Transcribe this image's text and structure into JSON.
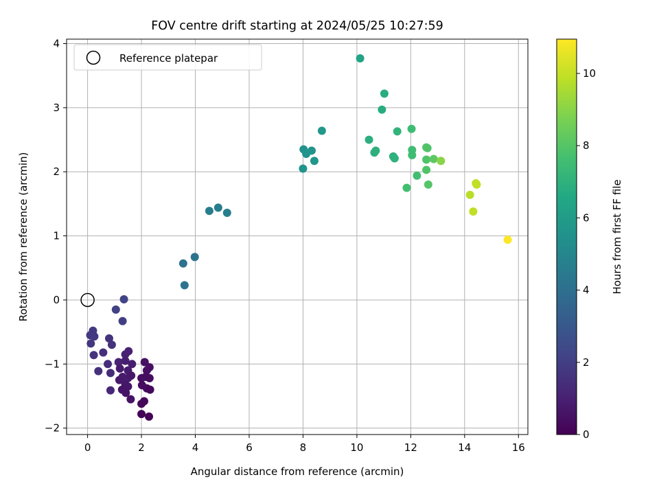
{
  "chart_data": {
    "type": "scatter",
    "title": "FOV centre drift starting at 2024/05/25 10:27:59",
    "xlabel": "Angular distance from reference (arcmin)",
    "ylabel": "Rotation from reference (arcmin)",
    "colorbar_label": "Hours from first FF file",
    "xlim": [
      -0.78,
      16.35
    ],
    "ylim": [
      -2.1,
      4.07
    ],
    "x_ticks": [
      0,
      2,
      4,
      6,
      8,
      10,
      12,
      14,
      16
    ],
    "y_ticks": [
      -2,
      -1,
      0,
      1,
      2,
      3,
      4
    ],
    "colorbar_range": [
      0,
      10.95
    ],
    "colorbar_ticks": [
      0,
      2,
      4,
      6,
      8,
      10
    ],
    "colormap": "viridis",
    "grid": true,
    "legend": {
      "placement": "top-left",
      "entries": [
        "Reference platepar"
      ]
    },
    "reference_point": {
      "x": 0,
      "y": 0
    },
    "points": [
      {
        "x": 1.35,
        "y": 0.01,
        "h": 2.2
      },
      {
        "x": 1.05,
        "y": -0.15,
        "h": 2.1
      },
      {
        "x": 1.3,
        "y": -0.33,
        "h": 2.0
      },
      {
        "x": 0.2,
        "y": -0.48,
        "h": 1.8
      },
      {
        "x": 0.25,
        "y": -0.57,
        "h": 1.8
      },
      {
        "x": 0.1,
        "y": -0.55,
        "h": 1.8
      },
      {
        "x": 0.12,
        "y": -0.68,
        "h": 1.7
      },
      {
        "x": 0.8,
        "y": -0.6,
        "h": 1.6
      },
      {
        "x": 0.9,
        "y": -0.7,
        "h": 1.6
      },
      {
        "x": 0.23,
        "y": -0.86,
        "h": 1.6
      },
      {
        "x": 0.58,
        "y": -0.82,
        "h": 1.5
      },
      {
        "x": 0.4,
        "y": -1.11,
        "h": 1.5
      },
      {
        "x": 0.75,
        "y": -1.0,
        "h": 1.4
      },
      {
        "x": 0.85,
        "y": -1.14,
        "h": 1.4
      },
      {
        "x": 0.85,
        "y": -1.41,
        "h": 1.2
      },
      {
        "x": 1.15,
        "y": -0.97,
        "h": 1.1
      },
      {
        "x": 1.4,
        "y": -0.85,
        "h": 1.0
      },
      {
        "x": 1.52,
        "y": -0.8,
        "h": 1.0
      },
      {
        "x": 1.4,
        "y": -0.95,
        "h": 0.95
      },
      {
        "x": 1.65,
        "y": -1.0,
        "h": 0.9
      },
      {
        "x": 1.2,
        "y": -1.07,
        "h": 0.85
      },
      {
        "x": 1.5,
        "y": -1.1,
        "h": 0.85
      },
      {
        "x": 1.3,
        "y": -1.2,
        "h": 0.8
      },
      {
        "x": 1.5,
        "y": -1.22,
        "h": 0.8
      },
      {
        "x": 1.18,
        "y": -1.25,
        "h": 0.75
      },
      {
        "x": 1.4,
        "y": -1.32,
        "h": 0.7
      },
      {
        "x": 1.62,
        "y": -1.18,
        "h": 0.7
      },
      {
        "x": 1.5,
        "y": -1.35,
        "h": 0.65
      },
      {
        "x": 1.28,
        "y": -1.4,
        "h": 0.6
      },
      {
        "x": 1.42,
        "y": -1.45,
        "h": 0.6
      },
      {
        "x": 1.6,
        "y": -1.55,
        "h": 0.55
      },
      {
        "x": 2.12,
        "y": -0.97,
        "h": 0.5
      },
      {
        "x": 2.2,
        "y": -1.1,
        "h": 0.45
      },
      {
        "x": 2.3,
        "y": -1.05,
        "h": 0.45
      },
      {
        "x": 2.0,
        "y": -1.22,
        "h": 0.4
      },
      {
        "x": 2.15,
        "y": -1.2,
        "h": 0.4
      },
      {
        "x": 2.3,
        "y": -1.22,
        "h": 0.35
      },
      {
        "x": 2.02,
        "y": -1.33,
        "h": 0.35
      },
      {
        "x": 2.2,
        "y": -1.38,
        "h": 0.3
      },
      {
        "x": 2.32,
        "y": -1.4,
        "h": 0.25
      },
      {
        "x": 2.1,
        "y": -1.58,
        "h": 0.2
      },
      {
        "x": 2.0,
        "y": -1.62,
        "h": 0.2
      },
      {
        "x": 2.0,
        "y": -1.78,
        "h": 0.1
      },
      {
        "x": 2.28,
        "y": -1.82,
        "h": 0.05
      },
      {
        "x": 3.55,
        "y": 0.57,
        "h": 4.1
      },
      {
        "x": 3.6,
        "y": 0.23,
        "h": 4.2
      },
      {
        "x": 3.98,
        "y": 0.67,
        "h": 4.2
      },
      {
        "x": 4.52,
        "y": 1.39,
        "h": 4.6
      },
      {
        "x": 4.85,
        "y": 1.44,
        "h": 4.6
      },
      {
        "x": 5.18,
        "y": 1.36,
        "h": 4.7
      },
      {
        "x": 8.02,
        "y": 2.35,
        "h": 5.5
      },
      {
        "x": 8.12,
        "y": 2.28,
        "h": 5.6
      },
      {
        "x": 8.32,
        "y": 2.33,
        "h": 5.6
      },
      {
        "x": 8.42,
        "y": 2.17,
        "h": 5.7
      },
      {
        "x": 8.0,
        "y": 2.05,
        "h": 5.6
      },
      {
        "x": 8.7,
        "y": 2.64,
        "h": 5.8
      },
      {
        "x": 10.12,
        "y": 3.77,
        "h": 6.4
      },
      {
        "x": 11.02,
        "y": 3.22,
        "h": 6.8
      },
      {
        "x": 10.93,
        "y": 2.97,
        "h": 6.8
      },
      {
        "x": 10.45,
        "y": 2.5,
        "h": 6.9
      },
      {
        "x": 10.65,
        "y": 2.3,
        "h": 6.9
      },
      {
        "x": 10.7,
        "y": 2.33,
        "h": 6.95
      },
      {
        "x": 11.35,
        "y": 2.24,
        "h": 7.0
      },
      {
        "x": 11.4,
        "y": 2.21,
        "h": 7.0
      },
      {
        "x": 11.5,
        "y": 2.63,
        "h": 7.1
      },
      {
        "x": 12.03,
        "y": 2.67,
        "h": 7.5
      },
      {
        "x": 12.05,
        "y": 2.34,
        "h": 7.5
      },
      {
        "x": 12.05,
        "y": 2.26,
        "h": 7.5
      },
      {
        "x": 12.23,
        "y": 1.94,
        "h": 7.6
      },
      {
        "x": 11.85,
        "y": 1.75,
        "h": 7.6
      },
      {
        "x": 12.58,
        "y": 2.38,
        "h": 7.9
      },
      {
        "x": 12.62,
        "y": 2.37,
        "h": 7.9
      },
      {
        "x": 12.58,
        "y": 2.19,
        "h": 7.9
      },
      {
        "x": 12.58,
        "y": 2.03,
        "h": 7.9
      },
      {
        "x": 12.85,
        "y": 2.2,
        "h": 8.2
      },
      {
        "x": 12.65,
        "y": 1.8,
        "h": 8.0
      },
      {
        "x": 13.12,
        "y": 2.17,
        "h": 9.0
      },
      {
        "x": 14.2,
        "y": 1.64,
        "h": 9.8
      },
      {
        "x": 14.42,
        "y": 1.82,
        "h": 9.9
      },
      {
        "x": 14.45,
        "y": 1.8,
        "h": 9.9
      },
      {
        "x": 14.32,
        "y": 1.38,
        "h": 9.9
      },
      {
        "x": 15.6,
        "y": 0.94,
        "h": 10.95
      }
    ]
  }
}
